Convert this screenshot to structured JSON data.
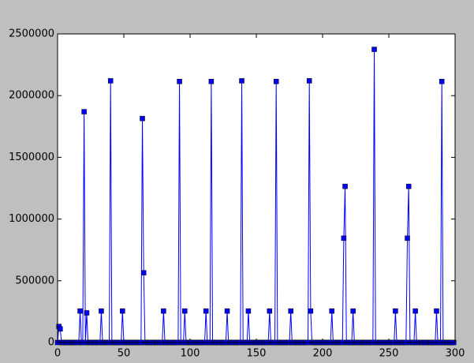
{
  "chart_data": {
    "type": "line",
    "color": "#0000ff",
    "marker": "square",
    "xlim": [
      0,
      300
    ],
    "xticks": [
      0,
      50,
      100,
      150,
      200,
      250,
      300
    ],
    "ylim": [
      0,
      2500000
    ],
    "yticks": [
      0,
      500000,
      1000000,
      1500000,
      2000000,
      2500000
    ],
    "x": [
      0,
      1,
      2,
      3,
      4,
      5,
      6,
      7,
      8,
      9,
      10,
      11,
      12,
      13,
      14,
      15,
      16,
      17,
      18,
      19,
      20,
      21,
      22,
      23,
      24,
      25,
      26,
      27,
      28,
      29,
      30,
      31,
      32,
      33,
      34,
      35,
      36,
      37,
      38,
      39,
      40,
      41,
      42,
      43,
      44,
      45,
      46,
      47,
      48,
      49,
      50,
      51,
      52,
      53,
      54,
      55,
      56,
      57,
      58,
      59,
      60,
      61,
      62,
      63,
      64,
      65,
      66,
      67,
      68,
      69,
      70,
      71,
      72,
      73,
      74,
      75,
      76,
      77,
      78,
      79,
      80,
      81,
      82,
      83,
      84,
      85,
      86,
      87,
      88,
      89,
      90,
      91,
      92,
      93,
      94,
      95,
      96,
      97,
      98,
      99,
      100,
      101,
      102,
      103,
      104,
      105,
      106,
      107,
      108,
      109,
      110,
      111,
      112,
      113,
      114,
      115,
      116,
      117,
      118,
      119,
      120,
      121,
      122,
      123,
      124,
      125,
      126,
      127,
      128,
      129,
      130,
      131,
      132,
      133,
      134,
      135,
      136,
      137,
      138,
      139,
      140,
      141,
      142,
      143,
      144,
      145,
      146,
      147,
      148,
      149,
      150,
      151,
      152,
      153,
      154,
      155,
      156,
      157,
      158,
      159,
      160,
      161,
      162,
      163,
      164,
      165,
      166,
      167,
      168,
      169,
      170,
      171,
      172,
      173,
      174,
      175,
      176,
      177,
      178,
      179,
      180,
      181,
      182,
      183,
      184,
      185,
      186,
      187,
      188,
      189,
      190,
      191,
      192,
      193,
      194,
      195,
      196,
      197,
      198,
      199,
      200,
      201,
      202,
      203,
      204,
      205,
      206,
      207,
      208,
      209,
      210,
      211,
      212,
      213,
      214,
      215,
      216,
      217,
      218,
      219,
      220,
      221,
      222,
      223,
      224,
      225,
      226,
      227,
      228,
      229,
      230,
      231,
      232,
      233,
      234,
      235,
      236,
      237,
      238,
      239,
      240,
      241,
      242,
      243,
      244,
      245,
      246,
      247,
      248,
      249,
      250,
      251,
      252,
      253,
      254,
      255,
      256,
      257,
      258,
      259,
      260,
      261,
      262,
      263,
      264,
      265,
      266,
      267,
      268,
      269,
      270,
      271,
      272,
      273,
      274,
      275,
      276,
      277,
      278,
      279,
      280,
      281,
      282,
      283,
      284,
      285,
      286,
      287,
      288,
      289,
      290,
      291,
      292,
      293,
      294,
      295,
      296,
      297,
      298,
      299
    ],
    "values": [
      0,
      130000,
      110000,
      0,
      0,
      0,
      0,
      0,
      0,
      0,
      0,
      0,
      0,
      0,
      0,
      0,
      0,
      255000,
      0,
      0,
      1870000,
      0,
      240000,
      0,
      0,
      0,
      0,
      0,
      0,
      0,
      0,
      0,
      0,
      255000,
      0,
      0,
      0,
      0,
      0,
      0,
      2120000,
      0,
      0,
      0,
      0,
      0,
      0,
      0,
      0,
      255000,
      0,
      0,
      0,
      0,
      0,
      0,
      0,
      0,
      0,
      0,
      0,
      0,
      0,
      0,
      1815000,
      565000,
      0,
      0,
      0,
      0,
      0,
      0,
      0,
      0,
      0,
      0,
      0,
      0,
      0,
      0,
      255000,
      0,
      0,
      0,
      0,
      0,
      0,
      0,
      0,
      0,
      0,
      0,
      2115000,
      0,
      0,
      0,
      255000,
      0,
      0,
      0,
      0,
      0,
      0,
      0,
      0,
      0,
      0,
      0,
      0,
      0,
      0,
      0,
      255000,
      0,
      0,
      0,
      2115000,
      0,
      0,
      0,
      0,
      0,
      0,
      0,
      0,
      0,
      0,
      0,
      255000,
      0,
      0,
      0,
      0,
      0,
      0,
      0,
      0,
      0,
      0,
      2120000,
      0,
      0,
      0,
      0,
      255000,
      0,
      0,
      0,
      0,
      0,
      0,
      0,
      0,
      0,
      0,
      0,
      0,
      0,
      0,
      0,
      255000,
      0,
      0,
      0,
      0,
      2115000,
      0,
      0,
      0,
      0,
      0,
      0,
      0,
      0,
      0,
      0,
      255000,
      0,
      0,
      0,
      0,
      0,
      0,
      0,
      0,
      0,
      0,
      0,
      0,
      0,
      2120000,
      255000,
      0,
      0,
      0,
      0,
      0,
      0,
      0,
      0,
      0,
      0,
      0,
      0,
      0,
      0,
      0,
      255000,
      0,
      0,
      0,
      0,
      0,
      0,
      0,
      0,
      845000,
      1265000,
      0,
      0,
      0,
      0,
      0,
      255000,
      0,
      0,
      0,
      0,
      0,
      0,
      0,
      0,
      0,
      0,
      0,
      0,
      0,
      0,
      0,
      2375000,
      0,
      0,
      0,
      0,
      0,
      0,
      0,
      0,
      0,
      0,
      0,
      0,
      0,
      0,
      0,
      255000,
      0,
      0,
      0,
      0,
      0,
      0,
      0,
      0,
      845000,
      1265000,
      0,
      0,
      0,
      0,
      255000,
      0,
      0,
      0,
      0,
      0,
      0,
      0,
      0,
      0,
      0,
      0,
      0,
      0,
      0,
      0,
      255000,
      0,
      0,
      0,
      2115000,
      0,
      0,
      0,
      0,
      0,
      0,
      0,
      0,
      0
    ]
  }
}
